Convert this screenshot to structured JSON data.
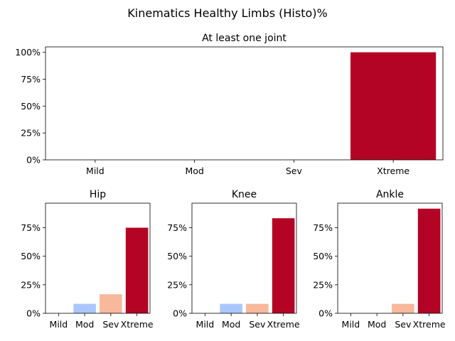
{
  "figure_title": "Kinematics Healthy Limbs (Histo)%",
  "colors": {
    "Mild": "#3b4cc0",
    "Mod": "#aac7fd",
    "Sev": "#f7b89c",
    "Xtreme": "#b40426"
  },
  "chart_data": [
    {
      "type": "bar",
      "title": "At least one joint",
      "categories": [
        "Mild",
        "Mod",
        "Sev",
        "Xtreme"
      ],
      "values": [
        0,
        0,
        0,
        100
      ],
      "ylim": [
        0,
        105
      ],
      "yticks": [
        "0%",
        "25%",
        "50%",
        "75%",
        "100%"
      ],
      "xlabel": "",
      "ylabel": "",
      "grid": false
    },
    {
      "type": "bar",
      "title": "Hip",
      "categories": [
        "Mild",
        "Mod",
        "Sev",
        "Xtreme"
      ],
      "values": [
        0,
        8.3,
        16.7,
        75
      ],
      "ylim": [
        0,
        96.5
      ],
      "yticks": [
        "0%",
        "25%",
        "50%",
        "75%"
      ],
      "xlabel": "",
      "ylabel": "",
      "grid": false
    },
    {
      "type": "bar",
      "title": "Knee",
      "categories": [
        "Mild",
        "Mod",
        "Sev",
        "Xtreme"
      ],
      "values": [
        0,
        8.3,
        8.3,
        83.3
      ],
      "ylim": [
        0,
        96.5
      ],
      "yticks": [
        "0%",
        "25%",
        "50%",
        "75%"
      ],
      "xlabel": "",
      "ylabel": "",
      "grid": false
    },
    {
      "type": "bar",
      "title": "Ankle",
      "categories": [
        "Mild",
        "Mod",
        "Sev",
        "Xtreme"
      ],
      "values": [
        0,
        0,
        8.3,
        91.7
      ],
      "ylim": [
        0,
        96.5
      ],
      "yticks": [
        "0%",
        "25%",
        "50%",
        "75%"
      ],
      "xlabel": "",
      "ylabel": "",
      "grid": false
    }
  ]
}
